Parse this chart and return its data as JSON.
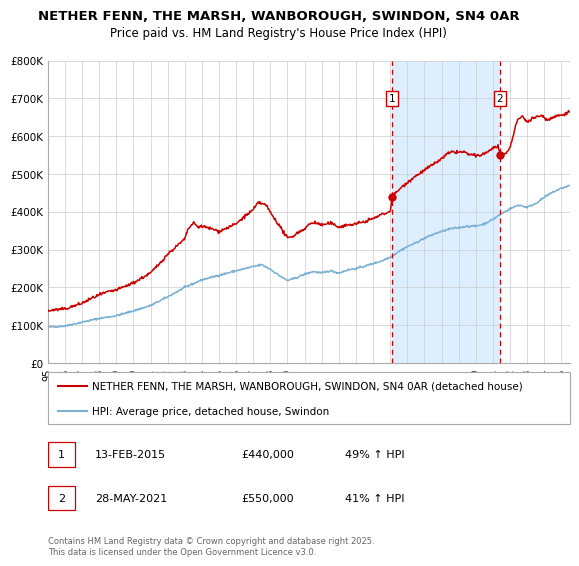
{
  "title_line1": "NETHER FENN, THE MARSH, WANBOROUGH, SWINDON, SN4 0AR",
  "title_line2": "Price paid vs. HM Land Registry's House Price Index (HPI)",
  "ylim": [
    0,
    800000
  ],
  "xlim_start": 1995.0,
  "xlim_end": 2025.5,
  "yticks": [
    0,
    100000,
    200000,
    300000,
    400000,
    500000,
    600000,
    700000,
    800000
  ],
  "ytick_labels": [
    "£0",
    "£100K",
    "£200K",
    "£300K",
    "£400K",
    "£500K",
    "£600K",
    "£700K",
    "£800K"
  ],
  "xtick_years": [
    1995,
    1996,
    1997,
    1998,
    1999,
    2000,
    2001,
    2002,
    2003,
    2004,
    2005,
    2006,
    2007,
    2008,
    2009,
    2010,
    2011,
    2012,
    2013,
    2014,
    2015,
    2016,
    2017,
    2018,
    2019,
    2020,
    2021,
    2022,
    2023,
    2024,
    2025
  ],
  "sale1_date": 2015.11,
  "sale1_price": 440000,
  "sale1_label": "1",
  "sale2_date": 2021.41,
  "sale2_price": 550000,
  "sale2_label": "2",
  "sale_color": "#cc0000",
  "hpi_color": "#7ab0d4",
  "shade_color": "#ddeeff",
  "vline_color": "#cc0000",
  "grid_color": "#cccccc",
  "background_color": "#ffffff",
  "legend1_label": "NETHER FENN, THE MARSH, WANBOROUGH, SWINDON, SN4 0AR (detached house)",
  "legend2_label": "HPI: Average price, detached house, Swindon",
  "annotation1": "13-FEB-2015",
  "annotation1_price": "£440,000",
  "annotation1_pct": "49% ↑ HPI",
  "annotation2": "28-MAY-2021",
  "annotation2_price": "£550,000",
  "annotation2_pct": "41% ↑ HPI",
  "footnote": "Contains HM Land Registry data © Crown copyright and database right 2025.\nThis data is licensed under the Open Government Licence v3.0.",
  "hpi_anchors": [
    [
      1995.0,
      95000
    ],
    [
      1996.0,
      98000
    ],
    [
      1997.0,
      108000
    ],
    [
      1998.0,
      118000
    ],
    [
      1999.0,
      125000
    ],
    [
      2000.0,
      138000
    ],
    [
      2001.0,
      152000
    ],
    [
      2002.0,
      175000
    ],
    [
      2003.0,
      200000
    ],
    [
      2004.0,
      220000
    ],
    [
      2005.0,
      232000
    ],
    [
      2006.0,
      244000
    ],
    [
      2007.0,
      255000
    ],
    [
      2007.5,
      260000
    ],
    [
      2008.0,
      248000
    ],
    [
      2008.5,
      232000
    ],
    [
      2009.0,
      218000
    ],
    [
      2009.5,
      225000
    ],
    [
      2010.0,
      235000
    ],
    [
      2010.5,
      242000
    ],
    [
      2011.0,
      238000
    ],
    [
      2011.5,
      244000
    ],
    [
      2012.0,
      238000
    ],
    [
      2012.5,
      246000
    ],
    [
      2013.0,
      250000
    ],
    [
      2013.5,
      256000
    ],
    [
      2014.0,
      263000
    ],
    [
      2014.5,
      270000
    ],
    [
      2015.0,
      280000
    ],
    [
      2015.5,
      295000
    ],
    [
      2016.0,
      308000
    ],
    [
      2016.5,
      318000
    ],
    [
      2017.0,
      330000
    ],
    [
      2017.5,
      340000
    ],
    [
      2018.0,
      348000
    ],
    [
      2018.5,
      355000
    ],
    [
      2019.0,
      358000
    ],
    [
      2019.5,
      362000
    ],
    [
      2020.0,
      362000
    ],
    [
      2020.5,
      368000
    ],
    [
      2021.0,
      380000
    ],
    [
      2021.5,
      395000
    ],
    [
      2022.0,
      408000
    ],
    [
      2022.5,
      418000
    ],
    [
      2023.0,
      412000
    ],
    [
      2023.5,
      422000
    ],
    [
      2024.0,
      438000
    ],
    [
      2024.5,
      452000
    ],
    [
      2025.0,
      462000
    ],
    [
      2025.5,
      470000
    ]
  ],
  "prop_anchors": [
    [
      1995.0,
      138000
    ],
    [
      1995.5,
      141000
    ],
    [
      1996.0,
      143000
    ],
    [
      1997.0,
      158000
    ],
    [
      1997.5,
      170000
    ],
    [
      1998.0,
      180000
    ],
    [
      1998.5,
      188000
    ],
    [
      1999.0,
      193000
    ],
    [
      2000.0,
      212000
    ],
    [
      2001.0,
      238000
    ],
    [
      2001.5,
      262000
    ],
    [
      2002.0,
      288000
    ],
    [
      2002.5,
      308000
    ],
    [
      2003.0,
      328000
    ],
    [
      2003.2,
      355000
    ],
    [
      2003.5,
      370000
    ],
    [
      2003.8,
      360000
    ],
    [
      2004.0,
      362000
    ],
    [
      2004.3,
      358000
    ],
    [
      2004.6,
      355000
    ],
    [
      2005.0,
      348000
    ],
    [
      2005.5,
      358000
    ],
    [
      2006.0,
      368000
    ],
    [
      2006.5,
      388000
    ],
    [
      2007.0,
      405000
    ],
    [
      2007.3,
      425000
    ],
    [
      2007.6,
      420000
    ],
    [
      2007.8,
      415000
    ],
    [
      2008.0,
      398000
    ],
    [
      2008.4,
      372000
    ],
    [
      2009.0,
      330000
    ],
    [
      2009.3,
      335000
    ],
    [
      2009.6,
      345000
    ],
    [
      2010.0,
      355000
    ],
    [
      2010.3,
      368000
    ],
    [
      2010.6,
      372000
    ],
    [
      2011.0,
      365000
    ],
    [
      2011.5,
      370000
    ],
    [
      2012.0,
      360000
    ],
    [
      2012.5,
      365000
    ],
    [
      2013.0,
      368000
    ],
    [
      2013.5,
      374000
    ],
    [
      2014.0,
      382000
    ],
    [
      2014.5,
      393000
    ],
    [
      2015.0,
      400000
    ],
    [
      2015.11,
      440000
    ],
    [
      2015.5,
      458000
    ],
    [
      2016.0,
      478000
    ],
    [
      2016.5,
      495000
    ],
    [
      2017.0,
      510000
    ],
    [
      2017.5,
      525000
    ],
    [
      2018.0,
      540000
    ],
    [
      2018.3,
      552000
    ],
    [
      2018.6,
      558000
    ],
    [
      2019.0,
      558000
    ],
    [
      2019.3,
      558000
    ],
    [
      2019.6,
      552000
    ],
    [
      2020.0,
      548000
    ],
    [
      2020.3,
      550000
    ],
    [
      2020.6,
      556000
    ],
    [
      2021.0,
      568000
    ],
    [
      2021.3,
      575000
    ],
    [
      2021.41,
      550000
    ],
    [
      2021.5,
      542000
    ],
    [
      2022.0,
      568000
    ],
    [
      2022.2,
      605000
    ],
    [
      2022.4,
      638000
    ],
    [
      2022.6,
      650000
    ],
    [
      2022.8,
      650000
    ],
    [
      2023.0,
      638000
    ],
    [
      2023.2,
      645000
    ],
    [
      2023.5,
      650000
    ],
    [
      2023.8,
      655000
    ],
    [
      2024.0,
      650000
    ],
    [
      2024.2,
      642000
    ],
    [
      2024.4,
      648000
    ],
    [
      2024.6,
      652000
    ],
    [
      2024.8,
      655000
    ],
    [
      2025.0,
      655000
    ],
    [
      2025.2,
      660000
    ],
    [
      2025.5,
      665000
    ]
  ]
}
